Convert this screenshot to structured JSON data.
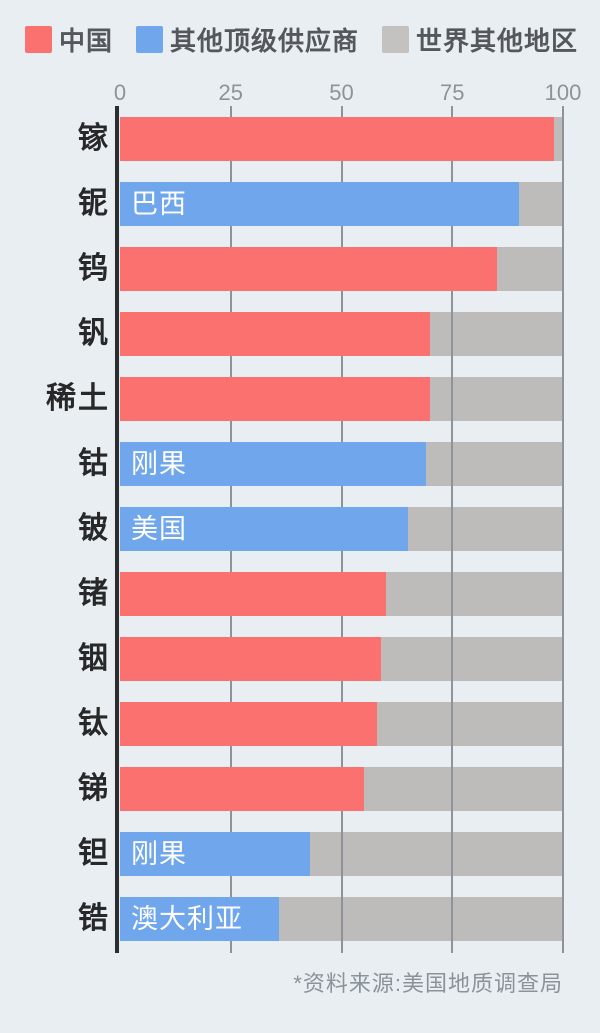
{
  "page": {
    "background": "#e8eef2"
  },
  "legend": {
    "items": [
      {
        "label": "中国",
        "color": "#fb7170"
      },
      {
        "label": "其他顶级供应商",
        "color": "#6fa6ec"
      },
      {
        "label": "世界其他地区",
        "color": "#c3c2c1"
      }
    ]
  },
  "chart_data": {
    "type": "bar",
    "orientation": "horizontal",
    "unit": "percent",
    "xlim": [
      0,
      100
    ],
    "ticks": [
      0,
      25,
      50,
      75,
      100
    ],
    "grid": true,
    "legend_position": "top",
    "categories": [
      "镓",
      "铌",
      "钨",
      "钒",
      "稀土",
      "钴",
      "铍",
      "锗",
      "铟",
      "钛",
      "锑",
      "钽",
      "锆"
    ],
    "rows": [
      {
        "category": "镓",
        "series": "中国",
        "value": 98,
        "bar_label": ""
      },
      {
        "category": "铌",
        "series": "其他顶级供应商",
        "value": 90,
        "bar_label": "巴西"
      },
      {
        "category": "钨",
        "series": "中国",
        "value": 85,
        "bar_label": ""
      },
      {
        "category": "钒",
        "series": "中国",
        "value": 70,
        "bar_label": ""
      },
      {
        "category": "稀土",
        "series": "中国",
        "value": 70,
        "bar_label": ""
      },
      {
        "category": "钴",
        "series": "其他顶级供应商",
        "value": 69,
        "bar_label": "刚果"
      },
      {
        "category": "铍",
        "series": "其他顶级供应商",
        "value": 65,
        "bar_label": "美国"
      },
      {
        "category": "锗",
        "series": "中国",
        "value": 60,
        "bar_label": ""
      },
      {
        "category": "铟",
        "series": "中国",
        "value": 59,
        "bar_label": ""
      },
      {
        "category": "钛",
        "series": "中国",
        "value": 58,
        "bar_label": ""
      },
      {
        "category": "锑",
        "series": "中国",
        "value": 55,
        "bar_label": ""
      },
      {
        "category": "钽",
        "series": "其他顶级供应商",
        "value": 43,
        "bar_label": "刚果"
      },
      {
        "category": "锆",
        "series": "其他顶级供应商",
        "value": 36,
        "bar_label": "澳大利亚"
      }
    ],
    "series_colors": {
      "中国": "#fb7170",
      "其他顶级供应商": "#6fa6ec",
      "世界其他地区": "#bdbcbb"
    }
  },
  "footer": {
    "source_note": "*资料来源:美国地质调查局"
  },
  "colors": {
    "gridline": "#8d9399",
    "axis_line": "#2b2d2f",
    "track": "#bdbcbb",
    "category_label": "#26282a",
    "tick_label": "#8d9399",
    "legend_text": "#54585c",
    "footer_text": "#8b9299",
    "bar_label_text": "#ffffff"
  }
}
